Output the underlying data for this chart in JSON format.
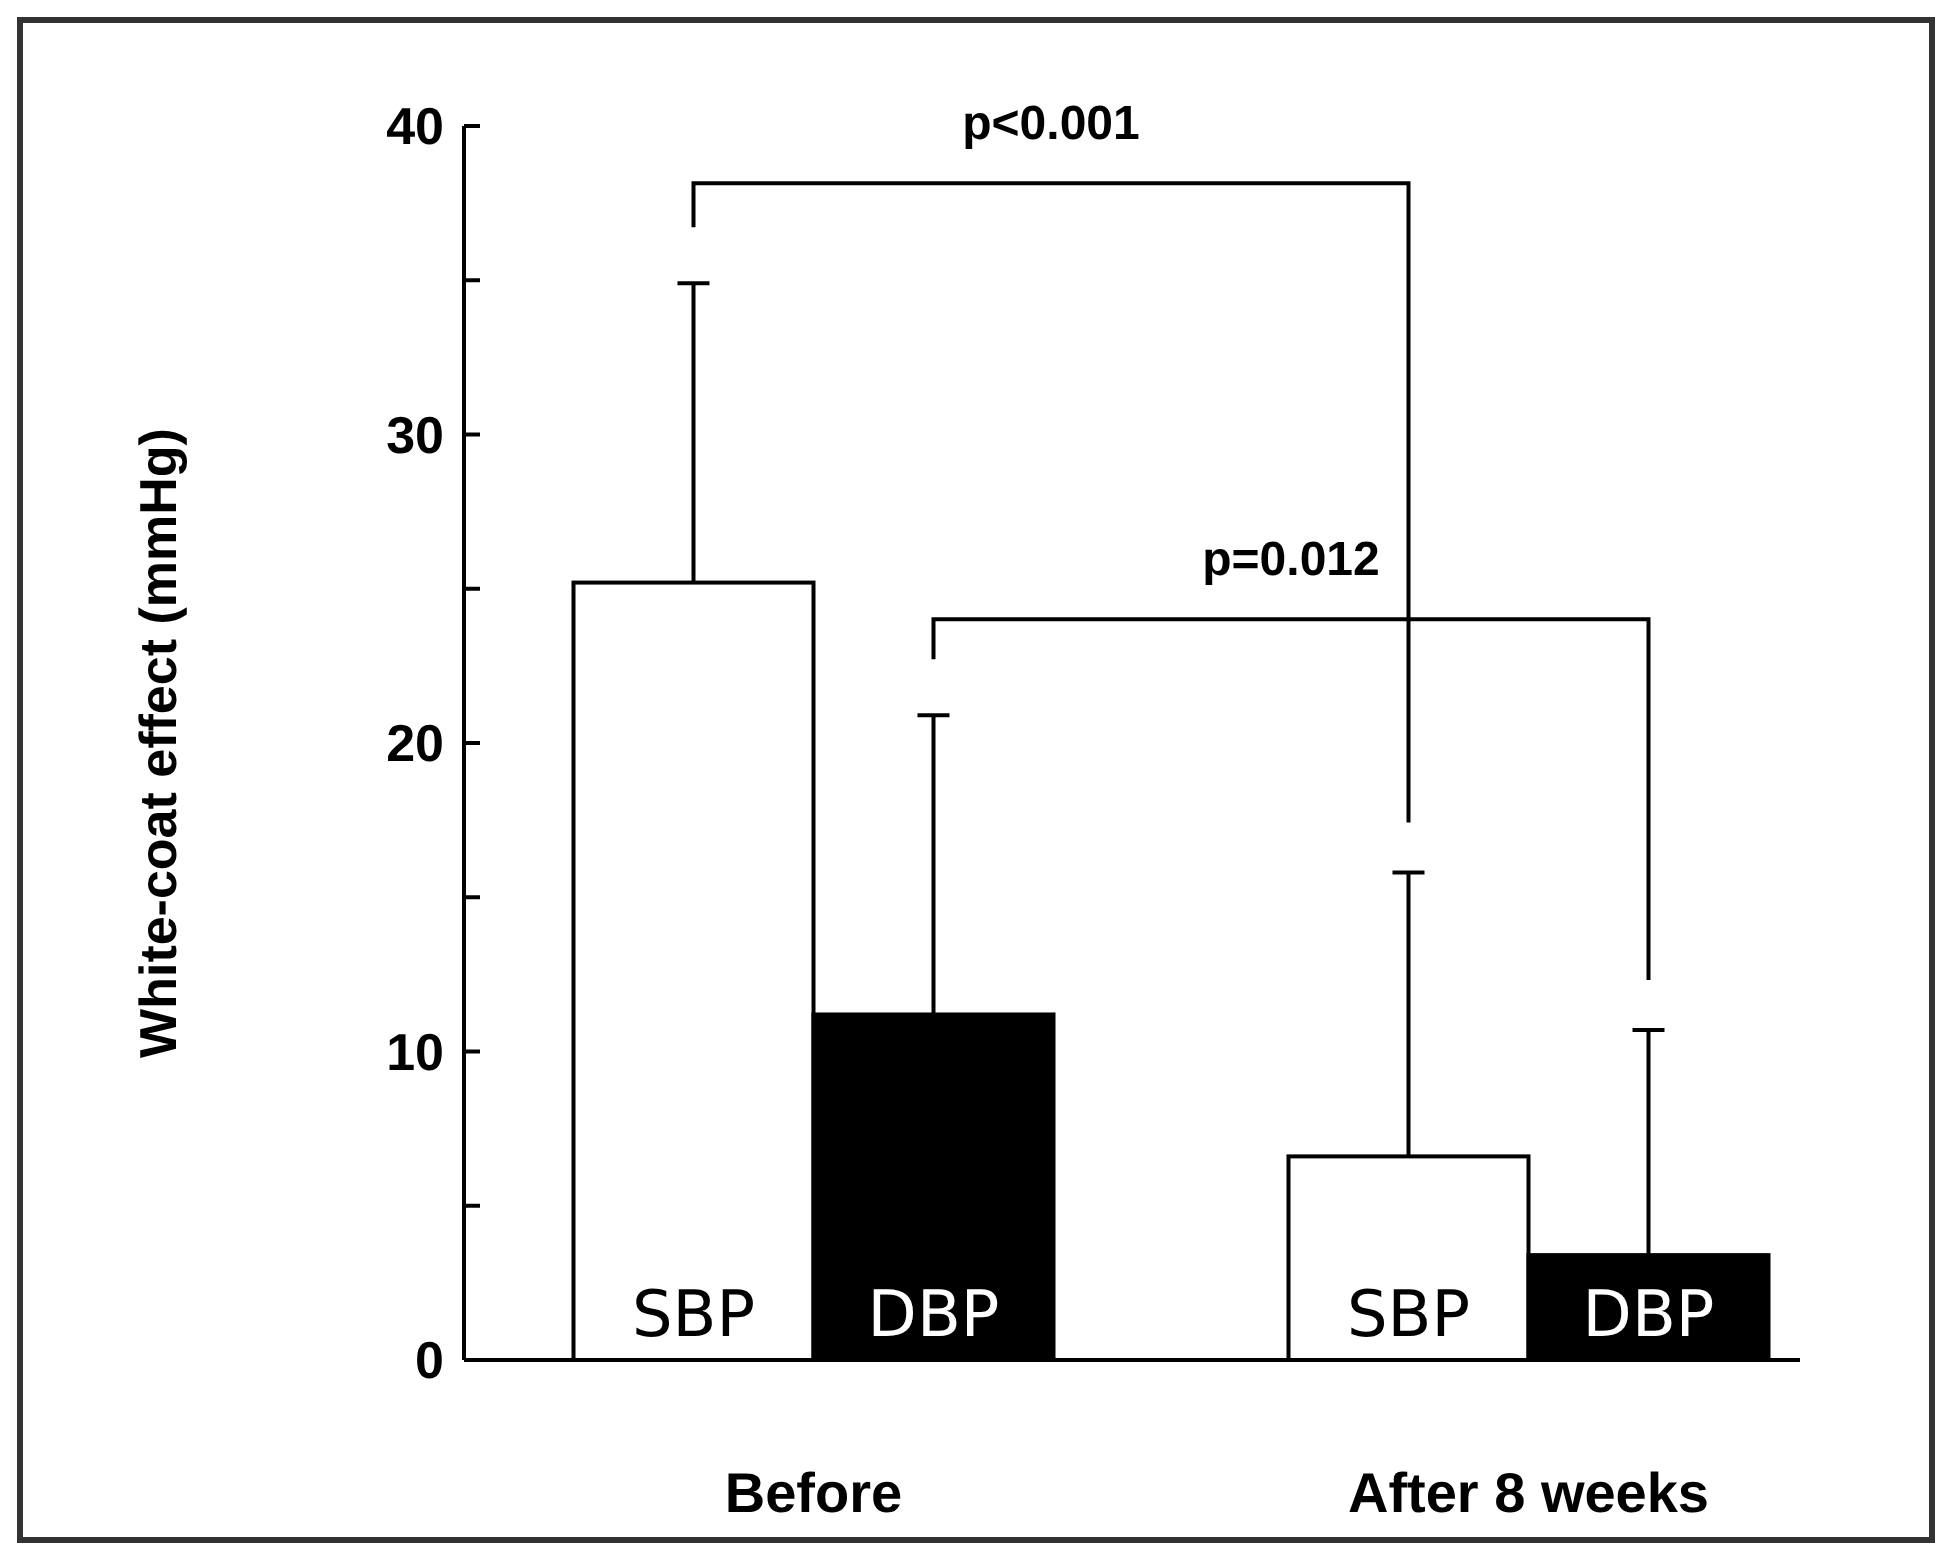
{
  "chart_data": {
    "type": "bar",
    "ylabel": "White-coat effect (mmHg)",
    "categories": [
      "Before",
      "After 8 weeks"
    ],
    "series": [
      {
        "name": "SBP",
        "color": "#ffffff",
        "values": [
          25.2,
          6.6
        ],
        "errors": [
          [
            25.2,
            34.9
          ],
          [
            6.6,
            15.8
          ]
        ]
      },
      {
        "name": "DBP",
        "color": "#000000",
        "values": [
          11.2,
          3.4
        ],
        "errors": [
          [
            11.2,
            20.9
          ],
          [
            3.4,
            10.7
          ]
        ]
      }
    ],
    "ylim": [
      0,
      40
    ],
    "yticks": [
      0,
      {
        "value": 5,
        "label": null
      },
      10,
      {
        "value": 15,
        "label": null
      },
      20,
      {
        "value": 25,
        "label": null
      },
      30,
      {
        "value": 35,
        "label": null
      },
      40
    ],
    "annotations": [
      "p<0.001",
      "p=0.012"
    ],
    "grid": false
  }
}
